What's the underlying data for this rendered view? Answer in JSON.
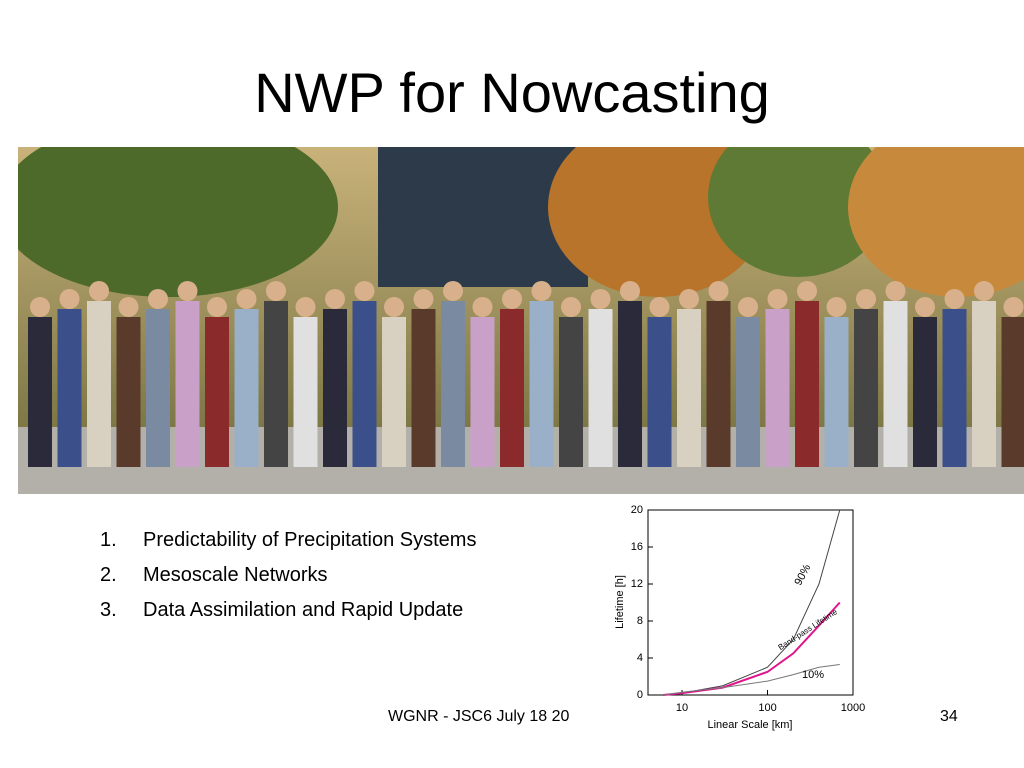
{
  "slide": {
    "title": "NWP for Nowcasting",
    "items": [
      {
        "marker": "1.",
        "text": "Predictability of Precipitation Systems"
      },
      {
        "marker": "2.",
        "text": "Mesoscale Networks"
      },
      {
        "marker": "3.",
        "text": "Data Assimilation and Rapid Update"
      }
    ],
    "footer": "WGNR - JSC6 July 18 20",
    "page_number": "34"
  },
  "chart_data": {
    "type": "line",
    "x_label": "Linear Scale [km]",
    "y_label": "Lifetime [h]",
    "x": [
      6,
      10,
      30,
      100,
      200,
      400,
      700
    ],
    "series": [
      {
        "name": "90%",
        "color": "#444444",
        "values": [
          0,
          0.2,
          1,
          3,
          6,
          12,
          20
        ]
      },
      {
        "name": "Band-pass Lifetime",
        "color": "#e0148c",
        "values": [
          0,
          0.2,
          0.8,
          2.5,
          4.5,
          7.5,
          10
        ]
      },
      {
        "name": "10%",
        "color": "#777777",
        "values": [
          0,
          0.3,
          0.8,
          1.5,
          2.2,
          3,
          3.3
        ]
      }
    ],
    "xscale": "log",
    "xlim": [
      4,
      1000
    ],
    "xticks": [
      10,
      100,
      1000
    ],
    "ylim": [
      0,
      20
    ],
    "yticks": [
      0,
      4,
      8,
      12,
      16,
      20
    ],
    "grid": false
  }
}
